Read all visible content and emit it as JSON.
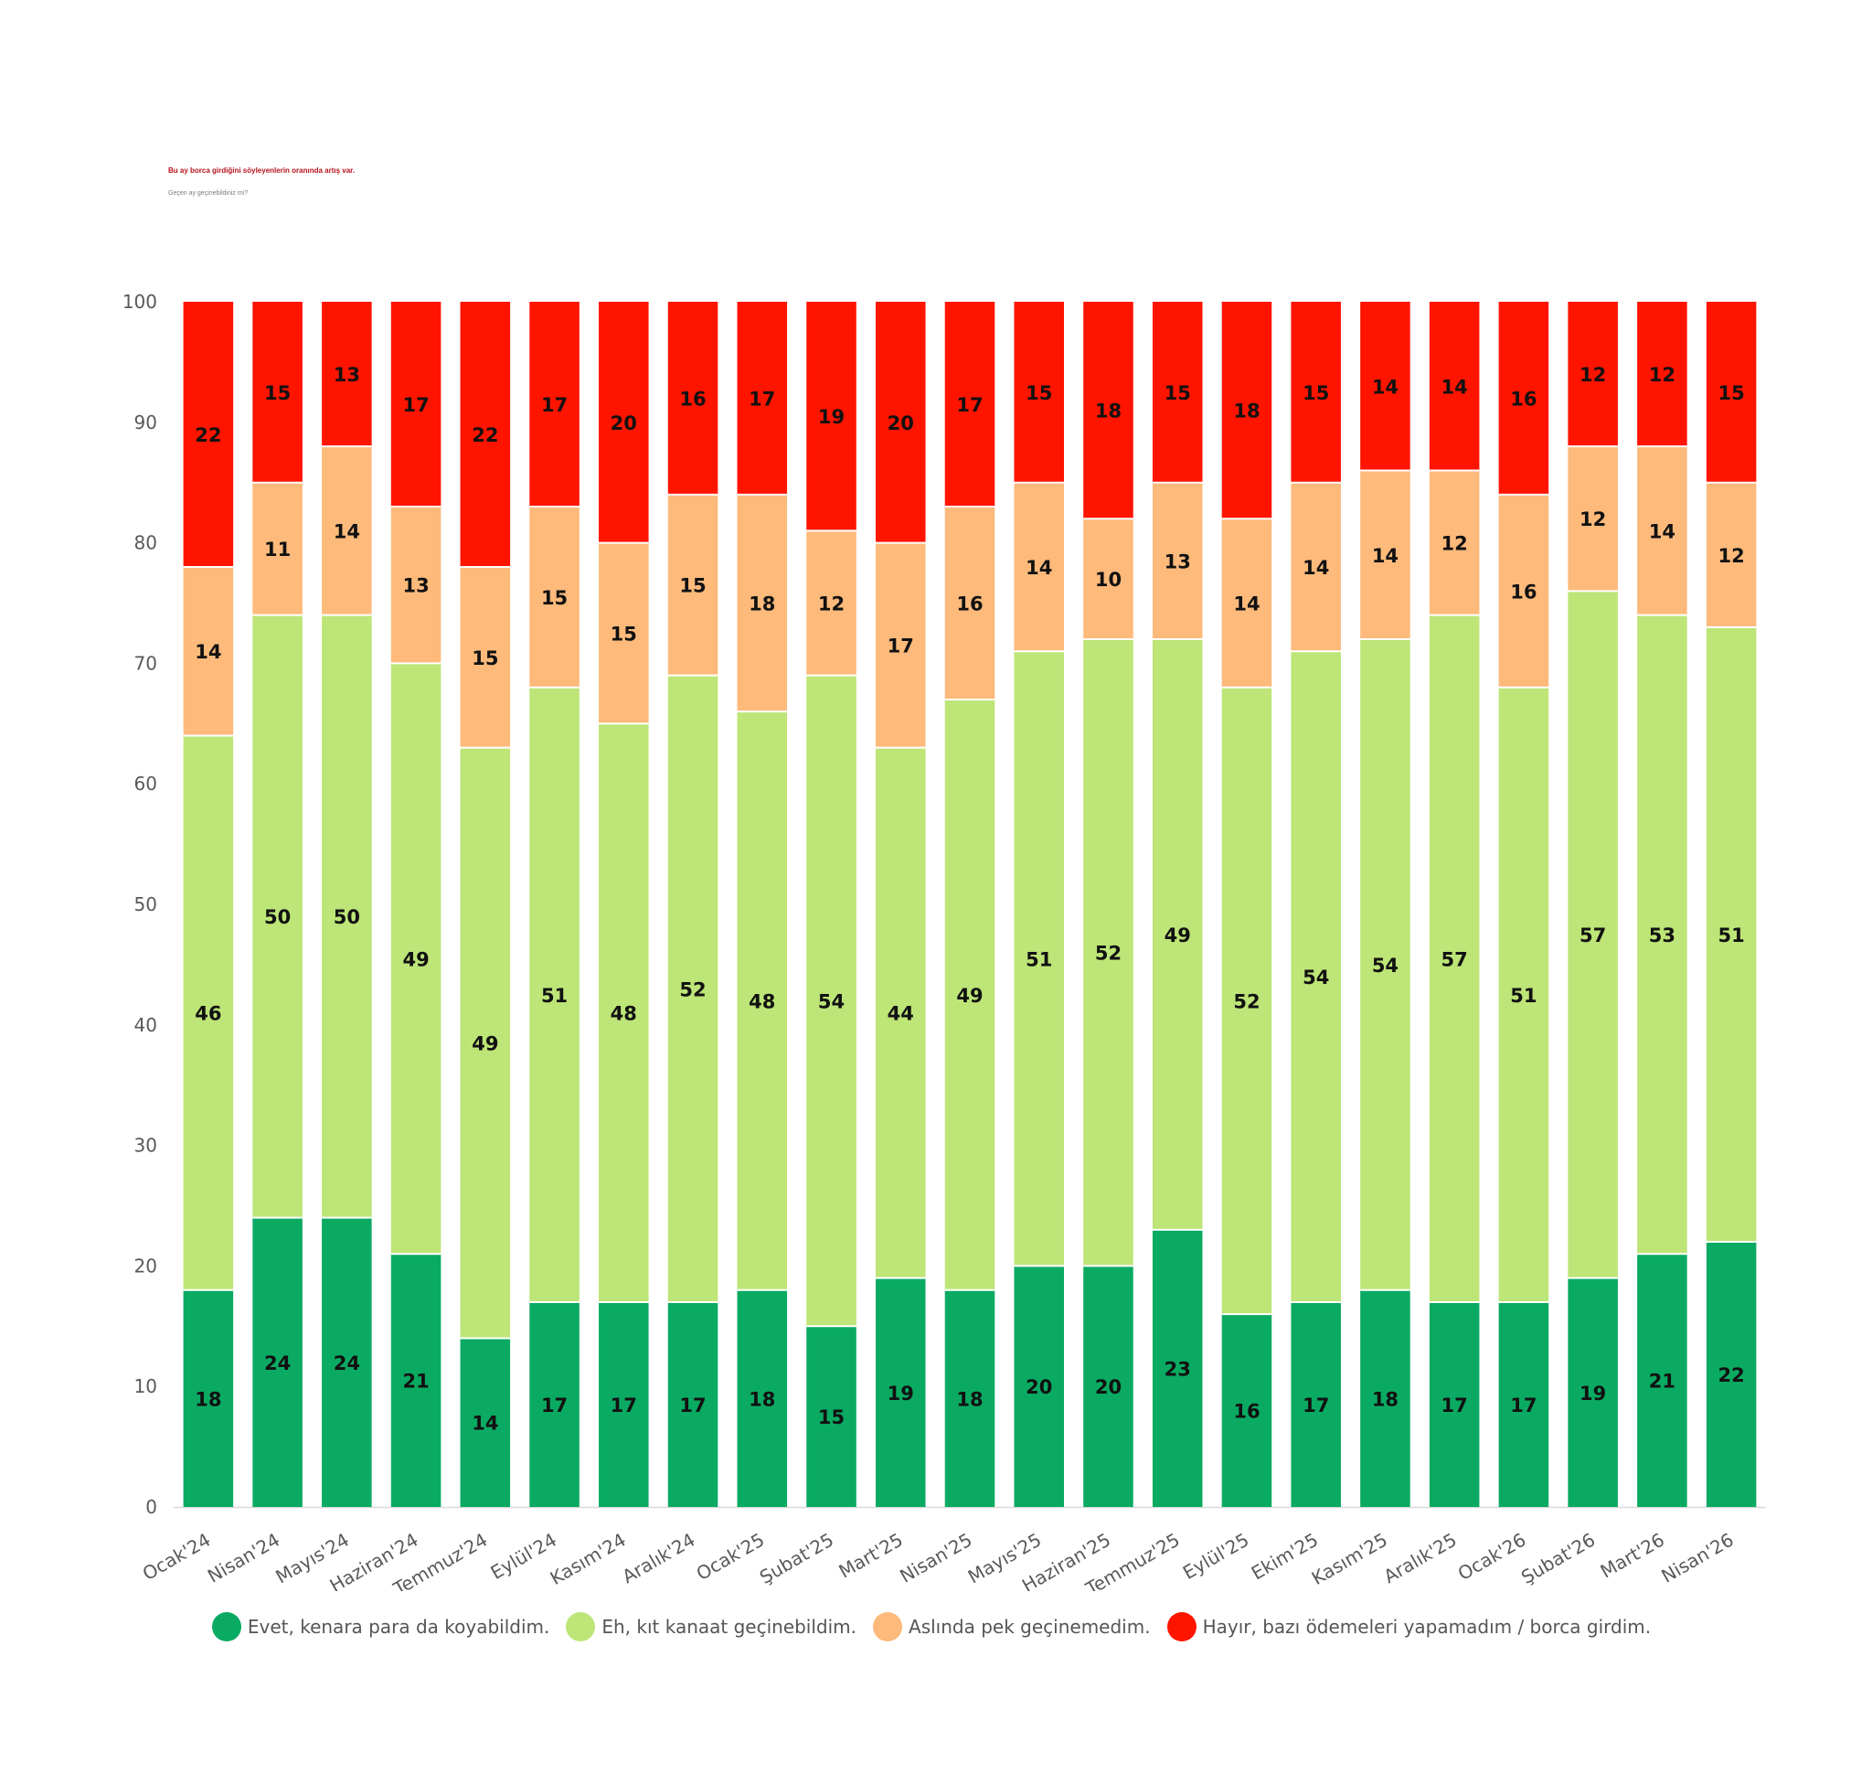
{
  "header": {
    "title": "Bu ay borca girdiğini söyleyenlerin oranında artış var.",
    "subtitle": "Geçen ay geçinebildiniz mi?"
  },
  "colors": {
    "series": [
      "#0aaa62",
      "#bde577",
      "#fdba7b",
      "#ff1400"
    ],
    "axis_text": "#595959",
    "title": "#b5121b"
  },
  "chart_data": {
    "type": "bar",
    "stacked": true,
    "title": "",
    "xlabel": "",
    "ylabel": "",
    "ylim": [
      0,
      100
    ],
    "yticks": [
      0,
      10,
      20,
      30,
      40,
      50,
      60,
      70,
      80,
      90,
      100
    ],
    "grid": false,
    "legend_position": "bottom",
    "categories": [
      "Ocak'24",
      "Nisan'24",
      "Mayıs'24",
      "Haziran'24",
      "Temmuz'24",
      "Eylül'24",
      "Kasım'24",
      "Aralık'24",
      "Ocak'25",
      "Şubat'25",
      "Mart'25",
      "Nisan'25",
      "Mayıs'25",
      "Haziran'25",
      "Temmuz'25",
      "Eylül'25",
      "Ekim'25",
      "Kasım'25",
      "Aralık'25",
      "Ocak'26",
      "Şubat'26",
      "Mart'26",
      "Nisan'26"
    ],
    "series": [
      {
        "name": "Evet, kenara para da koyabildim.",
        "values": [
          18,
          24,
          24,
          21,
          14,
          17,
          17,
          17,
          18,
          15,
          19,
          18,
          20,
          20,
          23,
          16,
          17,
          18,
          17,
          17,
          19,
          21,
          22
        ]
      },
      {
        "name": "Eh, kıt kanaat geçinebildim.",
        "values": [
          46,
          50,
          50,
          49,
          49,
          51,
          48,
          52,
          48,
          54,
          44,
          49,
          51,
          52,
          49,
          52,
          54,
          54,
          57,
          51,
          57,
          53,
          51
        ]
      },
      {
        "name": "Aslında pek geçinemedim.",
        "values": [
          14,
          11,
          14,
          13,
          15,
          15,
          15,
          15,
          18,
          12,
          17,
          16,
          14,
          10,
          13,
          14,
          14,
          14,
          12,
          16,
          12,
          14,
          12
        ]
      },
      {
        "name": "Hayır, bazı ödemeleri yapamadım / borca girdim.",
        "values": [
          22,
          15,
          13,
          17,
          22,
          17,
          20,
          16,
          17,
          19,
          20,
          17,
          15,
          18,
          15,
          18,
          15,
          14,
          14,
          16,
          12,
          12,
          15
        ]
      }
    ]
  }
}
